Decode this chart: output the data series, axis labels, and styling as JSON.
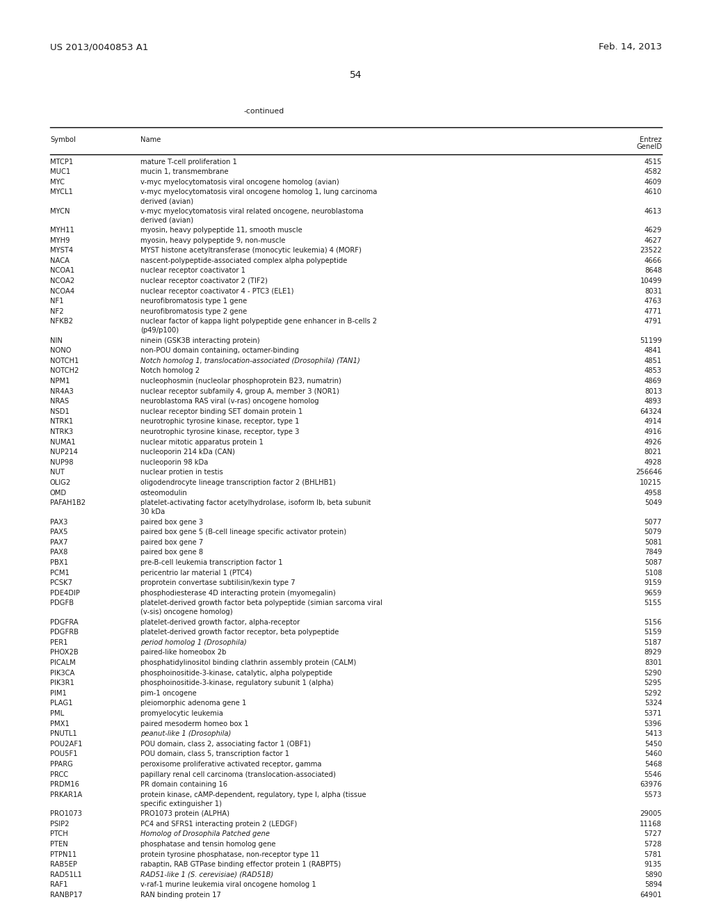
{
  "header_left": "US 2013/0040853 A1",
  "header_right": "Feb. 14, 2013",
  "page_number": "54",
  "continued_label": "-continued",
  "col_symbol": "Symbol",
  "col_name": "Name",
  "col_entrez_1": "Entrez",
  "col_entrez_2": "GeneID",
  "rows": [
    [
      "MTCP1",
      "mature T-cell proliferation 1",
      "4515",
      false
    ],
    [
      "MUC1",
      "mucin 1, transmembrane",
      "4582",
      false
    ],
    [
      "MYC",
      "v-myc myelocytomatosis viral oncogene homolog (avian)",
      "4609",
      false
    ],
    [
      "MYCL1",
      "v-myc myelocytomatosis viral oncogene homolog 1, lung carcinoma\nderived (avian)",
      "4610",
      false
    ],
    [
      "MYCN",
      "v-myc myelocytomatosis viral related oncogene, neuroblastoma\nderived (avian)",
      "4613",
      false
    ],
    [
      "MYH11",
      "myosin, heavy polypeptide 11, smooth muscle",
      "4629",
      false
    ],
    [
      "MYH9",
      "myosin, heavy polypeptide 9, non-muscle",
      "4627",
      false
    ],
    [
      "MYST4",
      "MYST histone acetyltransferase (monocytic leukemia) 4 (MORF)",
      "23522",
      false
    ],
    [
      "NACA",
      "nascent-polypeptide-associated complex alpha polypeptide",
      "4666",
      false
    ],
    [
      "NCOA1",
      "nuclear receptor coactivator 1",
      "8648",
      false
    ],
    [
      "NCOA2",
      "nuclear receptor coactivator 2 (TIF2)",
      "10499",
      false
    ],
    [
      "NCOA4",
      "nuclear receptor coactivator 4 - PTC3 (ELE1)",
      "8031",
      false
    ],
    [
      "NF1",
      "neurofibromatosis type 1 gene",
      "4763",
      false
    ],
    [
      "NF2",
      "neurofibromatosis type 2 gene",
      "4771",
      false
    ],
    [
      "NFKB2",
      "nuclear factor of kappa light polypeptide gene enhancer in B-cells 2\n(p49/p100)",
      "4791",
      false
    ],
    [
      "NIN",
      "ninein (GSK3B interacting protein)",
      "51199",
      false
    ],
    [
      "NONO",
      "non-POU domain containing, octamer-binding",
      "4841",
      false
    ],
    [
      "NOTCH1",
      "Notch homolog 1, translocation-associated (Drosophila) (TAN1)",
      "4851",
      true
    ],
    [
      "NOTCH2",
      "Notch homolog 2",
      "4853",
      false
    ],
    [
      "NPM1",
      "nucleophosmin (nucleolar phosphoprotein B23, numatrin)",
      "4869",
      false
    ],
    [
      "NR4A3",
      "nuclear receptor subfamily 4, group A, member 3 (NOR1)",
      "8013",
      false
    ],
    [
      "NRAS",
      "neuroblastoma RAS viral (v-ras) oncogene homolog",
      "4893",
      false
    ],
    [
      "NSD1",
      "nuclear receptor binding SET domain protein 1",
      "64324",
      false
    ],
    [
      "NTRK1",
      "neurotrophic tyrosine kinase, receptor, type 1",
      "4914",
      false
    ],
    [
      "NTRK3",
      "neurotrophic tyrosine kinase, receptor, type 3",
      "4916",
      false
    ],
    [
      "NUMA1",
      "nuclear mitotic apparatus protein 1",
      "4926",
      false
    ],
    [
      "NUP214",
      "nucleoporin 214 kDa (CAN)",
      "8021",
      false
    ],
    [
      "NUP98",
      "nucleoporin 98 kDa",
      "4928",
      false
    ],
    [
      "NUT",
      "nuclear protien in testis",
      "256646",
      false
    ],
    [
      "OLIG2",
      "oligodendrocyte lineage transcription factor 2 (BHLHB1)",
      "10215",
      false
    ],
    [
      "OMD",
      "osteomodulin",
      "4958",
      false
    ],
    [
      "PAFAH1B2",
      "platelet-activating factor acetylhydrolase, isoform Ib, beta subunit\n30 kDa",
      "5049",
      false
    ],
    [
      "PAX3",
      "paired box gene 3",
      "5077",
      false
    ],
    [
      "PAX5",
      "paired box gene 5 (B-cell lineage specific activator protein)",
      "5079",
      false
    ],
    [
      "PAX7",
      "paired box gene 7",
      "5081",
      false
    ],
    [
      "PAX8",
      "paired box gene 8",
      "7849",
      false
    ],
    [
      "PBX1",
      "pre-B-cell leukemia transcription factor 1",
      "5087",
      false
    ],
    [
      "PCM1",
      "pericentrio lar material 1 (PTC4)",
      "5108",
      false
    ],
    [
      "PCSK7",
      "proprotein convertase subtilisin/kexin type 7",
      "9159",
      false
    ],
    [
      "PDE4DIP",
      "phosphodiesterase 4D interacting protein (myomegalin)",
      "9659",
      false
    ],
    [
      "PDGFB",
      "platelet-derived growth factor beta polypeptide (simian sarcoma viral\n(v-sis) oncogene homolog)",
      "5155",
      false
    ],
    [
      "PDGFRA",
      "platelet-derived growth factor, alpha-receptor",
      "5156",
      false
    ],
    [
      "PDGFRB",
      "platelet-derived growth factor receptor, beta polypeptide",
      "5159",
      false
    ],
    [
      "PER1",
      "period homolog 1 (Drosophila)",
      "5187",
      true
    ],
    [
      "PHOX2B",
      "paired-like homeobox 2b",
      "8929",
      false
    ],
    [
      "PICALM",
      "phosphatidylinositol binding clathrin assembly protein (CALM)",
      "8301",
      false
    ],
    [
      "PIK3CA",
      "phosphoinositide-3-kinase, catalytic, alpha polypeptide",
      "5290",
      false
    ],
    [
      "PIK3R1",
      "phosphoinositide-3-kinase, regulatory subunit 1 (alpha)",
      "5295",
      false
    ],
    [
      "PIM1",
      "pim-1 oncogene",
      "5292",
      false
    ],
    [
      "PLAG1",
      "pleiomorphic adenoma gene 1",
      "5324",
      false
    ],
    [
      "PML",
      "promyelocytic leukemia",
      "5371",
      false
    ],
    [
      "PMX1",
      "paired mesoderm homeo box 1",
      "5396",
      false
    ],
    [
      "PNUTL1",
      "peanut-like 1 (Drosophila)",
      "5413",
      true
    ],
    [
      "POU2AF1",
      "POU domain, class 2, associating factor 1 (OBF1)",
      "5450",
      false
    ],
    [
      "POU5F1",
      "POU domain, class 5, transcription factor 1",
      "5460",
      false
    ],
    [
      "PPARG",
      "peroxisome proliferative activated receptor, gamma",
      "5468",
      false
    ],
    [
      "PRCC",
      "papillary renal cell carcinoma (translocation-associated)",
      "5546",
      false
    ],
    [
      "PRDM16",
      "PR domain containing 16",
      "63976",
      false
    ],
    [
      "PRKAR1A",
      "protein kinase, cAMP-dependent, regulatory, type I, alpha (tissue\nspecific extinguisher 1)",
      "5573",
      false
    ],
    [
      "PRO1073",
      "PRO1073 protein (ALPHA)",
      "29005",
      false
    ],
    [
      "PSIP2",
      "PC4 and SFRS1 interacting protein 2 (LEDGF)",
      "11168",
      false
    ],
    [
      "PTCH",
      "Homolog of Drosophila Patched gene",
      "5727",
      true
    ],
    [
      "PTEN",
      "phosphatase and tensin homolog gene",
      "5728",
      false
    ],
    [
      "PTPN11",
      "protein tyrosine phosphatase, non-receptor type 11",
      "5781",
      false
    ],
    [
      "RAB5EP",
      "rabaptin, RAB GTPase binding effector protein 1 (RABPT5)",
      "9135",
      false
    ],
    [
      "RAD51L1",
      "RAD51-like 1 (S. cerevisiae) (RAD51B)",
      "5890",
      true
    ],
    [
      "RAF1",
      "v-raf-1 murine leukemia viral oncogene homolog 1",
      "5894",
      false
    ],
    [
      "RANBP17",
      "RAN binding protein 17",
      "64901",
      false
    ]
  ],
  "bg_color": "#ffffff",
  "text_color": "#1a1a1a",
  "font_size": 7.2,
  "header_font_size": 9.5,
  "page_num_font_size": 10,
  "continued_font_size": 7.8
}
